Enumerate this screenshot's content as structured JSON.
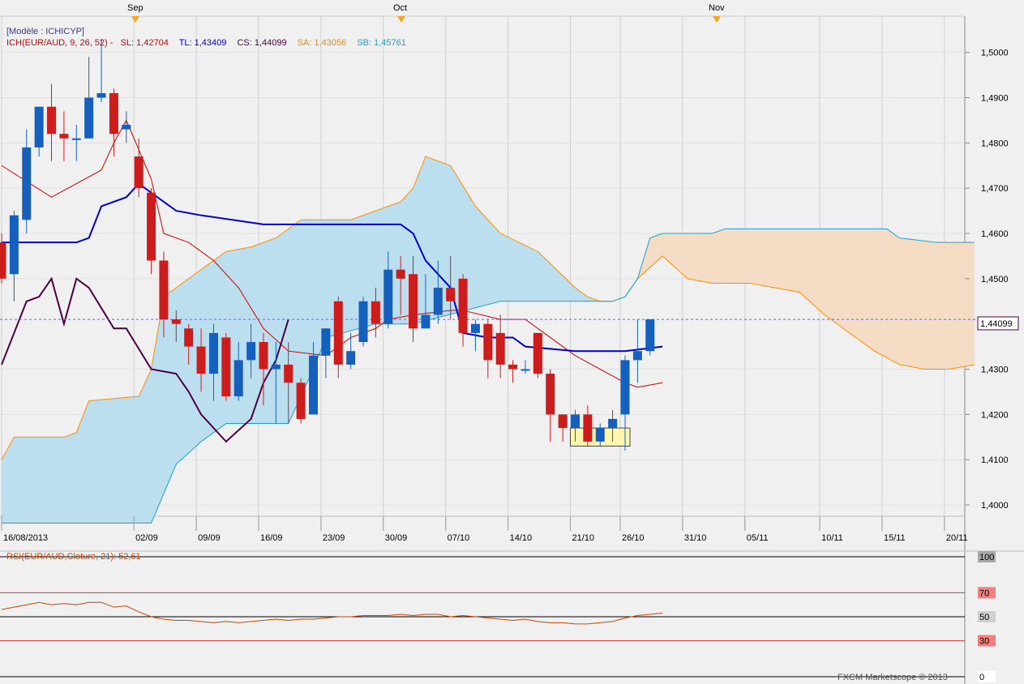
{
  "chart_data": {
    "type": "candlestick",
    "model_label": "[Modèle : ICHICYP]",
    "indicator_header": {
      "ich": "ICH(EUR/AUD, 9, 26, 52) -",
      "sl": "SL: 1,42704",
      "tl": "TL: 1,43409",
      "cs": "CS: 1,44099",
      "sa": "SA: 1,43056",
      "sb": "SB: 1,45761"
    },
    "months": [
      "Sep",
      "Oct",
      "Nov"
    ],
    "x_ticks": [
      "16/08/2013",
      "02/09",
      "09/09",
      "16/09",
      "23/09",
      "30/09",
      "07/10",
      "14/10",
      "21/10",
      "26/10",
      "31/10",
      "05/11",
      "10/11",
      "15/11",
      "20/11"
    ],
    "y_ticks": [
      "1,5000",
      "1,4900",
      "1,4800",
      "1,4700",
      "1,4600",
      "1,4500",
      "1,4300",
      "1,4200",
      "1,4100",
      "1,4000"
    ],
    "ylim": [
      1.3975,
      1.508
    ],
    "current_price_label": "1,44099",
    "current_price": 1.44099,
    "candles": [
      [
        1.458,
        1.45,
        1.46,
        1.449
      ],
      [
        1.451,
        1.464,
        1.465,
        1.445
      ],
      [
        1.463,
        1.479,
        1.483,
        1.46
      ],
      [
        1.479,
        1.488,
        1.488,
        1.477
      ],
      [
        1.488,
        1.482,
        1.493,
        1.476
      ],
      [
        1.482,
        1.481,
        1.487,
        1.476
      ],
      [
        1.481,
        1.481,
        1.484,
        1.476
      ],
      [
        1.481,
        1.49,
        1.499,
        1.481
      ],
      [
        1.49,
        1.491,
        1.503,
        1.489
      ],
      [
        1.491,
        1.482,
        1.492,
        1.477
      ],
      [
        1.483,
        1.484,
        1.487,
        1.48
      ],
      [
        1.477,
        1.47,
        1.481,
        1.468
      ],
      [
        1.469,
        1.454,
        1.47,
        1.451
      ],
      [
        1.454,
        1.441,
        1.456,
        1.437
      ],
      [
        1.441,
        1.44,
        1.443,
        1.436
      ],
      [
        1.439,
        1.435,
        1.44,
        1.431
      ],
      [
        1.435,
        1.429,
        1.439,
        1.425
      ],
      [
        1.429,
        1.438,
        1.44,
        1.423
      ],
      [
        1.437,
        1.424,
        1.438,
        1.423
      ],
      [
        1.424,
        1.432,
        1.436,
        1.423
      ],
      [
        1.432,
        1.436,
        1.44,
        1.428
      ],
      [
        1.436,
        1.43,
        1.438,
        1.422
      ],
      [
        1.43,
        1.431,
        1.436,
        1.418
      ],
      [
        1.431,
        1.427,
        1.436,
        1.418
      ],
      [
        1.427,
        1.419,
        1.428,
        1.418
      ],
      [
        1.42,
        1.433,
        1.436,
        1.42
      ],
      [
        1.433,
        1.439,
        1.439,
        1.428
      ],
      [
        1.445,
        1.431,
        1.446,
        1.428
      ],
      [
        1.431,
        1.434,
        1.438,
        1.43
      ],
      [
        1.436,
        1.445,
        1.446,
        1.435
      ],
      [
        1.445,
        1.44,
        1.448,
        1.437
      ],
      [
        1.44,
        1.452,
        1.456,
        1.439
      ],
      [
        1.452,
        1.45,
        1.455,
        1.442
      ],
      [
        1.451,
        1.439,
        1.455,
        1.436
      ],
      [
        1.439,
        1.442,
        1.451,
        1.439
      ],
      [
        1.442,
        1.448,
        1.454,
        1.44
      ],
      [
        1.448,
        1.445,
        1.455,
        1.441
      ],
      [
        1.45,
        1.438,
        1.451,
        1.435
      ],
      [
        1.438,
        1.44,
        1.441,
        1.434
      ],
      [
        1.44,
        1.432,
        1.441,
        1.428
      ],
      [
        1.438,
        1.431,
        1.442,
        1.428
      ],
      [
        1.431,
        1.43,
        1.432,
        1.427
      ],
      [
        1.43,
        1.43,
        1.432,
        1.429
      ],
      [
        1.438,
        1.429,
        1.438,
        1.428
      ],
      [
        1.429,
        1.42,
        1.43,
        1.414
      ],
      [
        1.42,
        1.417,
        1.42,
        1.414
      ],
      [
        1.417,
        1.42,
        1.421,
        1.414
      ],
      [
        1.42,
        1.414,
        1.422,
        1.413
      ],
      [
        1.414,
        1.417,
        1.418,
        1.413
      ],
      [
        1.417,
        1.419,
        1.421,
        1.414
      ],
      [
        1.42,
        1.432,
        1.433,
        1.412
      ],
      [
        1.432,
        1.434,
        1.441,
        1.427
      ],
      [
        1.434,
        1.441,
        1.441,
        1.433
      ]
    ],
    "tenkan": [
      [
        0,
        1.475
      ],
      [
        4,
        1.468
      ],
      [
        8,
        1.474
      ],
      [
        9,
        1.48
      ],
      [
        10,
        1.485
      ],
      [
        12,
        1.472
      ],
      [
        13,
        1.46
      ],
      [
        15,
        1.458
      ],
      [
        17,
        1.454
      ],
      [
        19,
        1.448
      ],
      [
        21,
        1.439
      ],
      [
        23,
        1.434
      ],
      [
        26,
        1.433
      ],
      [
        28,
        1.437
      ],
      [
        30,
        1.439
      ],
      [
        31,
        1.441
      ],
      [
        33,
        1.442
      ],
      [
        36,
        1.443
      ],
      [
        37,
        1.443
      ],
      [
        40,
        1.441
      ],
      [
        42,
        1.441
      ],
      [
        44,
        1.437
      ],
      [
        46,
        1.433
      ],
      [
        48,
        1.43
      ],
      [
        50,
        1.427
      ],
      [
        51,
        1.426
      ],
      [
        53,
        1.427
      ]
    ],
    "kijun": [
      [
        0,
        1.458
      ],
      [
        3,
        1.458
      ],
      [
        6,
        1.458
      ],
      [
        7,
        1.459
      ],
      [
        8,
        1.466
      ],
      [
        10,
        1.468
      ],
      [
        11,
        1.471
      ],
      [
        12,
        1.469
      ],
      [
        14,
        1.465
      ],
      [
        16,
        1.464
      ],
      [
        21,
        1.462
      ],
      [
        28,
        1.462
      ],
      [
        32,
        1.462
      ],
      [
        33,
        1.46
      ],
      [
        34,
        1.454
      ],
      [
        36,
        1.448
      ],
      [
        37,
        1.438
      ],
      [
        39,
        1.437
      ],
      [
        41,
        1.437
      ],
      [
        42,
        1.435
      ],
      [
        46,
        1.434
      ],
      [
        50,
        1.434
      ],
      [
        53,
        1.435
      ]
    ],
    "chikou": [
      [
        0,
        1.431
      ],
      [
        2,
        1.445
      ],
      [
        3,
        1.446
      ],
      [
        4,
        1.45
      ],
      [
        5,
        1.44
      ],
      [
        6,
        1.45
      ],
      [
        7,
        1.448
      ],
      [
        9,
        1.439
      ],
      [
        10,
        1.439
      ],
      [
        12,
        1.43
      ],
      [
        14,
        1.429
      ],
      [
        15,
        1.425
      ],
      [
        16,
        1.42
      ],
      [
        17,
        1.417
      ],
      [
        18,
        1.414
      ],
      [
        20,
        1.419
      ],
      [
        21,
        1.427
      ],
      [
        22,
        1.432
      ],
      [
        23,
        1.441
      ]
    ],
    "senkou_a": [
      [
        0,
        1.41
      ],
      [
        1,
        1.415
      ],
      [
        5,
        1.415
      ],
      [
        6,
        1.416
      ],
      [
        7,
        1.423
      ],
      [
        11,
        1.424
      ],
      [
        12,
        1.43
      ],
      [
        13,
        1.446
      ],
      [
        15,
        1.45
      ],
      [
        18,
        1.456
      ],
      [
        20,
        1.457
      ],
      [
        22,
        1.459
      ],
      [
        24,
        1.463
      ],
      [
        28,
        1.463
      ],
      [
        32,
        1.467
      ],
      [
        33,
        1.47
      ],
      [
        34,
        1.477
      ],
      [
        36,
        1.475
      ],
      [
        38,
        1.466
      ],
      [
        40,
        1.46
      ],
      [
        43,
        1.456
      ],
      [
        46,
        1.448
      ],
      [
        47,
        1.446
      ],
      [
        48,
        1.445
      ],
      [
        49,
        1.445
      ],
      [
        50,
        1.446
      ],
      [
        51,
        1.45
      ],
      [
        53,
        1.455
      ],
      [
        55,
        1.45
      ],
      [
        57,
        1.449
      ],
      [
        60,
        1.449
      ],
      [
        62,
        1.448
      ],
      [
        64,
        1.447
      ],
      [
        66,
        1.442
      ],
      [
        68,
        1.438
      ],
      [
        70,
        1.434
      ],
      [
        72,
        1.431
      ],
      [
        74,
        1.43
      ],
      [
        76,
        1.43
      ],
      [
        78,
        1.431
      ]
    ],
    "senkou_b": [
      [
        0,
        1.396
      ],
      [
        12,
        1.396
      ],
      [
        14,
        1.409
      ],
      [
        16,
        1.414
      ],
      [
        18,
        1.418
      ],
      [
        23,
        1.418
      ],
      [
        25,
        1.43
      ],
      [
        26,
        1.437
      ],
      [
        30,
        1.44
      ],
      [
        33,
        1.44
      ],
      [
        40,
        1.445
      ],
      [
        49,
        1.445
      ],
      [
        50,
        1.446
      ],
      [
        51,
        1.45
      ],
      [
        52,
        1.459
      ],
      [
        53,
        1.46
      ],
      [
        57,
        1.46
      ],
      [
        58,
        1.461
      ],
      [
        62,
        1.461
      ],
      [
        68,
        1.461
      ],
      [
        71,
        1.461
      ],
      [
        72,
        1.459
      ],
      [
        75,
        1.458
      ],
      [
        78,
        1.458
      ]
    ],
    "box": {
      "x0": 46,
      "x1": 50,
      "y0": 1.417,
      "y1": 1.413
    },
    "rsi": {
      "label": "RSI(EUR/AUD,Cloture, 21): 52,61",
      "levels": [
        "100",
        "70",
        "50",
        "30",
        "0"
      ],
      "values": [
        [
          0,
          56
        ],
        [
          1,
          58
        ],
        [
          2,
          60
        ],
        [
          3,
          62
        ],
        [
          4,
          60
        ],
        [
          5,
          61
        ],
        [
          6,
          60
        ],
        [
          7,
          62
        ],
        [
          8,
          62
        ],
        [
          9,
          58
        ],
        [
          10,
          59
        ],
        [
          11,
          54
        ],
        [
          12,
          50
        ],
        [
          13,
          48
        ],
        [
          14,
          47
        ],
        [
          15,
          47
        ],
        [
          16,
          46
        ],
        [
          17,
          45
        ],
        [
          18,
          46
        ],
        [
          19,
          45
        ],
        [
          20,
          46
        ],
        [
          21,
          47
        ],
        [
          22,
          48
        ],
        [
          23,
          47
        ],
        [
          24,
          48
        ],
        [
          25,
          48
        ],
        [
          26,
          49
        ],
        [
          27,
          50
        ],
        [
          28,
          50
        ],
        [
          29,
          51
        ],
        [
          30,
          51
        ],
        [
          31,
          51
        ],
        [
          32,
          52
        ],
        [
          33,
          51
        ],
        [
          34,
          52
        ],
        [
          35,
          52
        ],
        [
          36,
          50
        ],
        [
          37,
          51
        ],
        [
          38,
          50
        ],
        [
          39,
          49
        ],
        [
          40,
          48
        ],
        [
          41,
          47
        ],
        [
          42,
          48
        ],
        [
          43,
          46
        ],
        [
          44,
          45
        ],
        [
          45,
          45
        ],
        [
          46,
          44
        ],
        [
          47,
          44
        ],
        [
          48,
          45
        ],
        [
          49,
          46
        ],
        [
          50,
          49
        ],
        [
          51,
          51
        ],
        [
          52,
          52
        ],
        [
          53,
          53
        ]
      ]
    },
    "watermark": "FXCM Marketscope © 2013",
    "colors": {
      "bull": "#1560bd",
      "bear": "#cc1c1c",
      "tenkan": "#cc0000",
      "kijun": "#0000cc",
      "chikou": "#4b0040",
      "senkou_a": "#ff8c00",
      "senkou_b": "#1a9fd8",
      "cloud_up": "#bcdff0",
      "cloud_down": "#f4dcc5",
      "rsi": "#cc4400"
    }
  }
}
